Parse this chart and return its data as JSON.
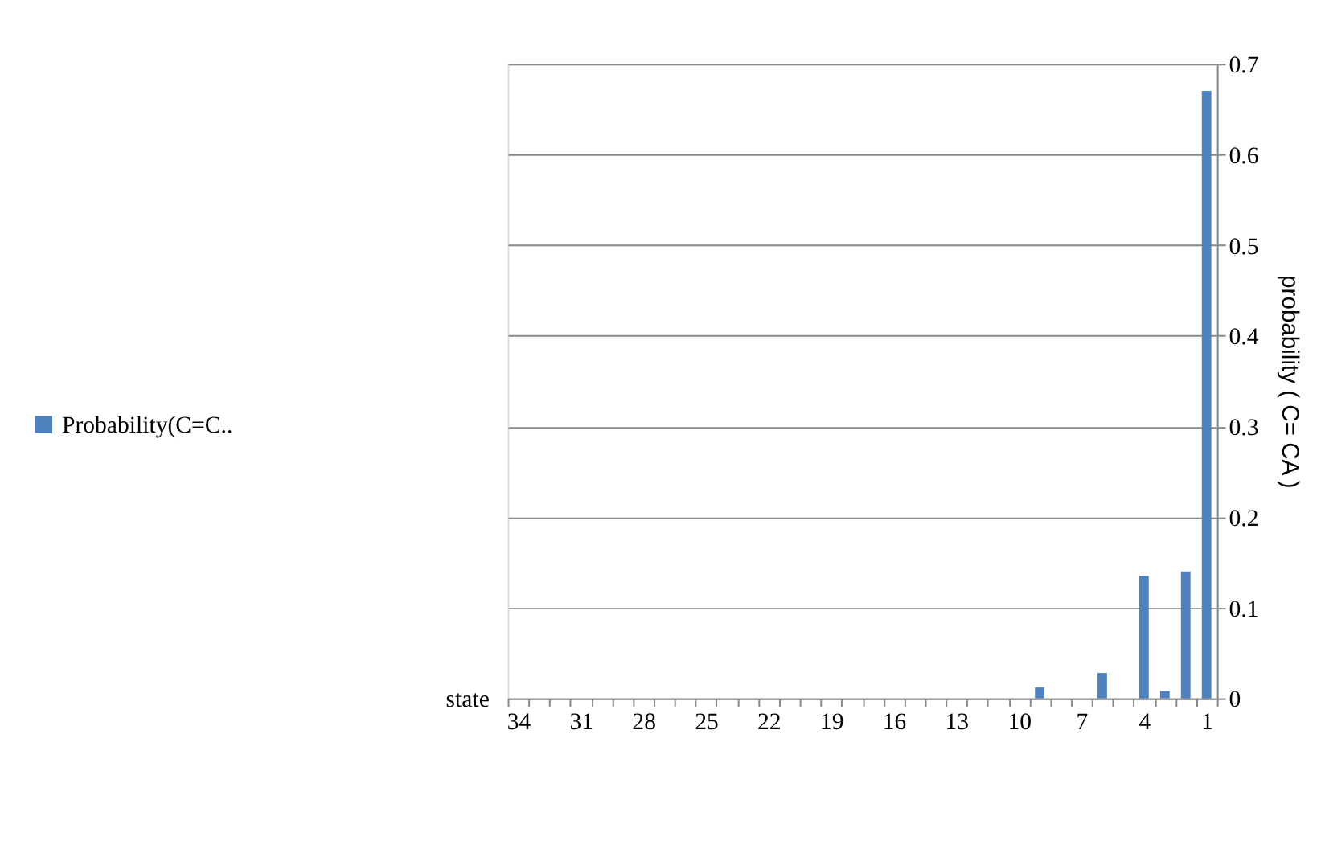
{
  "chart_data": {
    "type": "bar",
    "xlabel": "state",
    "ylabel": "probability  ( C= CA )",
    "categories": [
      "34",
      null,
      null,
      "31",
      null,
      null,
      "28",
      null,
      null,
      "25",
      null,
      null,
      "22",
      null,
      null,
      "19",
      null,
      null,
      "16",
      null,
      null,
      "13",
      null,
      null,
      "10",
      null,
      null,
      "7",
      null,
      null,
      "4",
      null,
      null,
      "1"
    ],
    "series": [
      {
        "name": "Probability(C=C..",
        "color": "#4f81bd",
        "values": [
          0,
          0,
          0,
          0,
          0,
          0,
          0,
          0,
          0,
          0,
          0,
          0,
          0,
          0,
          0,
          0,
          0,
          0,
          0,
          0,
          0,
          0,
          0,
          0,
          0,
          0.012,
          0,
          0,
          0.028,
          0,
          0.135,
          0.008,
          0.14,
          0.67
        ]
      }
    ],
    "ylim": [
      0,
      0.7
    ],
    "yticks": [
      0,
      0.1,
      0.2,
      0.3,
      0.4,
      0.5,
      0.6,
      0.7
    ],
    "grid": "y",
    "legend": "left"
  }
}
